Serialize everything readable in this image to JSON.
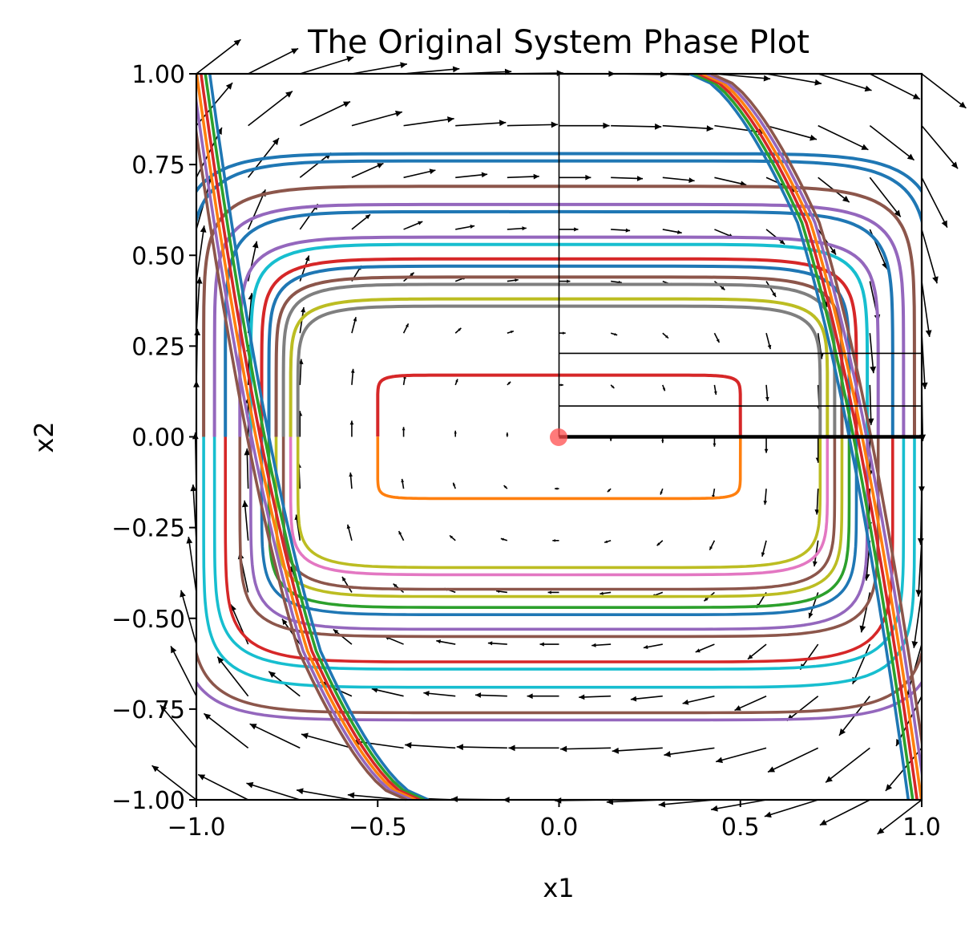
{
  "chart_data": {
    "type": "line",
    "title": "The Original System Phase Plot",
    "xlabel": "x1",
    "ylabel": "x2",
    "xlim": [
      -1.0,
      1.0
    ],
    "ylim": [
      -1.0,
      1.0
    ],
    "x_ticks": [
      "−1.0",
      "−0.5",
      "0.0",
      "0.5",
      "1.0"
    ],
    "x_tick_values": [
      -1.0,
      -0.5,
      0.0,
      0.5,
      1.0
    ],
    "y_ticks": [
      "−1.00",
      "−0.75",
      "−0.50",
      "−0.25",
      "0.00",
      "0.25",
      "0.50",
      "0.75",
      "1.00"
    ],
    "y_tick_values": [
      -1.0,
      -0.75,
      -0.5,
      -0.25,
      0.0,
      0.25,
      0.5,
      0.75,
      1.0
    ],
    "grid": false,
    "equilibrium_point": {
      "x": 0.0,
      "y": 0.0,
      "color": "#ff4d4d"
    },
    "vector_field": {
      "description": "quiver arrows on 15x15 grid",
      "range": [
        -1.0,
        1.0
      ],
      "color": "#000000"
    },
    "orbits": [
      {
        "amp_x": 0.5,
        "amp_y": 0.17,
        "n": 14,
        "colors": [
          "#d62728",
          "#ff7f0e"
        ]
      },
      {
        "amp_x": 0.72,
        "amp_y": 0.36,
        "n": 8,
        "colors": [
          "#7f7f7f",
          "#bcbd22"
        ]
      },
      {
        "amp_x": 0.74,
        "amp_y": 0.38,
        "n": 8,
        "colors": [
          "#bcbd22",
          "#e377c2"
        ]
      },
      {
        "amp_x": 0.76,
        "amp_y": 0.42,
        "n": 8,
        "colors": [
          "#7f7f7f",
          "#8c564b"
        ]
      },
      {
        "amp_x": 0.78,
        "amp_y": 0.44,
        "n": 8,
        "colors": [
          "#8c564b",
          "#bcbd22"
        ]
      },
      {
        "amp_x": 0.8,
        "amp_y": 0.47,
        "n": 8,
        "colors": [
          "#1f77b4",
          "#2ca02c"
        ]
      },
      {
        "amp_x": 0.82,
        "amp_y": 0.49,
        "n": 8,
        "colors": [
          "#d62728",
          "#1f77b4"
        ]
      },
      {
        "amp_x": 0.85,
        "amp_y": 0.53,
        "n": 8,
        "colors": [
          "#17becf",
          "#9467bd"
        ]
      },
      {
        "amp_x": 0.88,
        "amp_y": 0.55,
        "n": 8,
        "colors": [
          "#9467bd",
          "#8c564b"
        ]
      },
      {
        "amp_x": 0.92,
        "amp_y": 0.62,
        "n": 8,
        "colors": [
          "#1f77b4",
          "#d62728"
        ]
      },
      {
        "amp_x": 0.95,
        "amp_y": 0.64,
        "n": 8,
        "colors": [
          "#9467bd",
          "#17becf"
        ]
      },
      {
        "amp_x": 0.98,
        "amp_y": 0.69,
        "n": 8,
        "colors": [
          "#8c564b",
          "#17becf"
        ]
      },
      {
        "amp_x": 1.02,
        "amp_y": 0.76,
        "n": 8,
        "colors": [
          "#1f77b4",
          "#8c564b"
        ]
      },
      {
        "amp_x": 1.05,
        "amp_y": 0.78,
        "n": 8,
        "colors": [
          "#1f77b4",
          "#9467bd"
        ]
      }
    ],
    "outer_curves": [
      {
        "color": "#1f77b4"
      },
      {
        "color": "#2ca02c"
      },
      {
        "color": "#d62728"
      },
      {
        "color": "#ff7f0e"
      },
      {
        "color": "#9467bd"
      },
      {
        "color": "#8c564b"
      }
    ]
  }
}
